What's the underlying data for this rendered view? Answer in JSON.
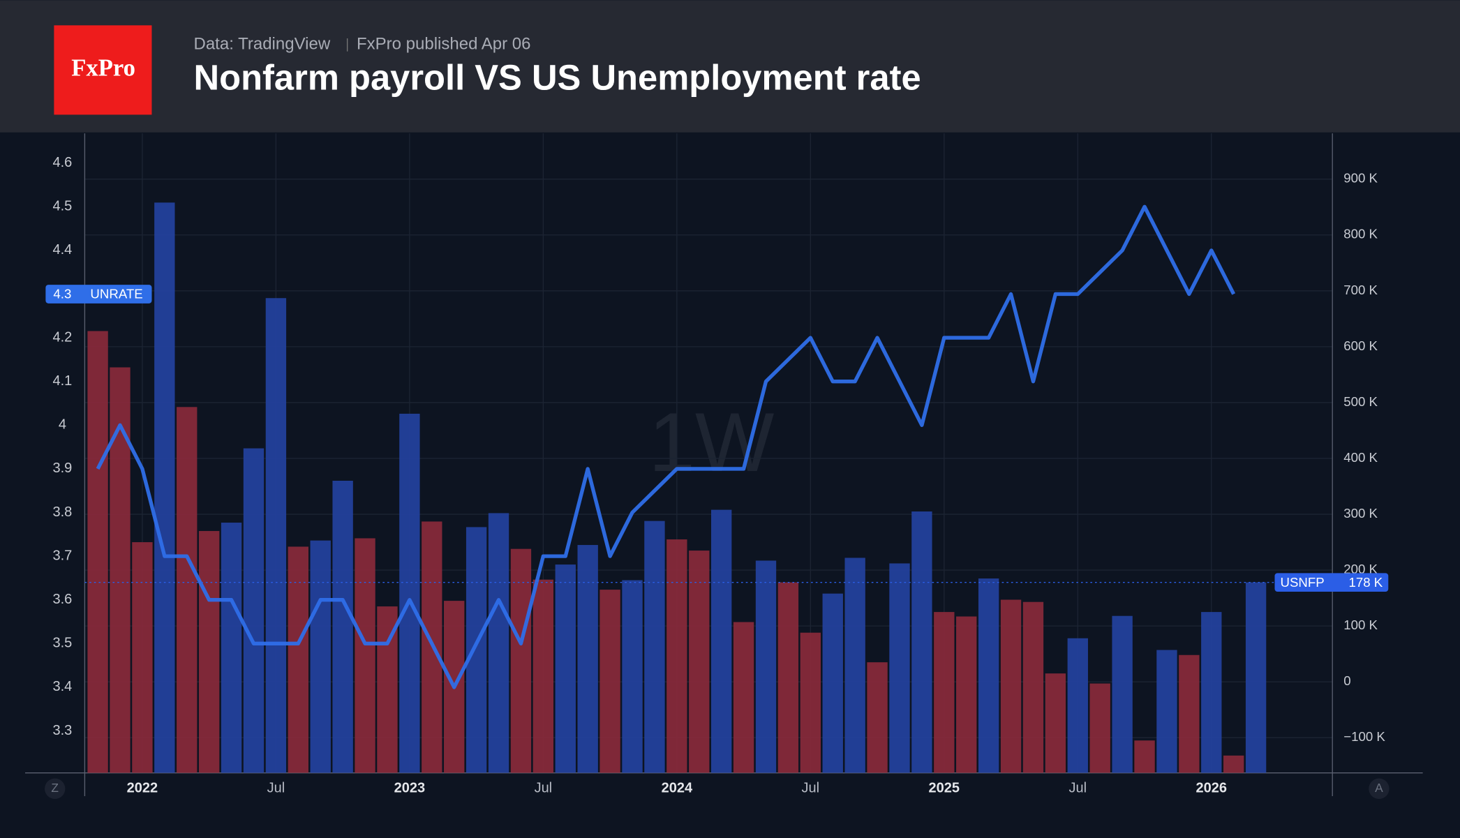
{
  "header": {
    "logo": "FxPro",
    "source": "Data: TradingView",
    "published": "FxPro published Apr 06"
  },
  "buttons": [
    "Z",
    "A"
  ],
  "chart_data": {
    "type": "bar",
    "title": "Nonfarm payroll VS US Unemployment rate",
    "watermark": "1W",
    "categories": [
      null,
      null,
      "2022",
      null,
      null,
      null,
      null,
      null,
      "Jul",
      null,
      null,
      null,
      null,
      null,
      "2023",
      null,
      null,
      null,
      null,
      null,
      "Jul",
      null,
      null,
      null,
      null,
      null,
      "2024",
      null,
      null,
      null,
      null,
      null,
      "Jul",
      null,
      null,
      null,
      null,
      null,
      "2025",
      null,
      null,
      null,
      null,
      null,
      "Jul",
      null,
      null,
      null,
      null,
      null,
      "2026",
      null,
      null
    ],
    "series": [
      {
        "name": "USNFP",
        "type": "bar",
        "axis": "y2",
        "badge": "178 K",
        "badge_value": 178,
        "color": "#2b5ee6",
        "colors": [
          "#8c2a3b",
          "#8c2a3b",
          "#8c2a3b",
          "#2443a2",
          "#8c2a3b",
          "#8c2a3b",
          "#2443a2",
          "#2443a2",
          "#2443a2",
          "#8c2a3b",
          "#2443a2",
          "#2443a2",
          "#8c2a3b",
          "#8c2a3b",
          "#2443a2",
          "#8c2a3b",
          "#8c2a3b",
          "#2443a2",
          "#2443a2",
          "#8c2a3b",
          "#8c2a3b",
          "#2443a2",
          "#2443a2",
          "#8c2a3b",
          "#2443a2",
          "#2443a2",
          "#8c2a3b",
          "#8c2a3b",
          "#2443a2",
          "#8c2a3b",
          "#2443a2",
          "#8c2a3b",
          "#8c2a3b",
          "#2443a2",
          "#2443a2",
          "#8c2a3b",
          "#2443a2",
          "#2443a2",
          "#8c2a3b",
          "#8c2a3b",
          "#2443a2",
          "#8c2a3b",
          "#8c2a3b",
          "#8c2a3b",
          "#2443a2",
          "#8c2a3b",
          "#2443a2",
          "#8c2a3b",
          "#2443a2",
          "#8c2a3b",
          "#2443a2",
          "#8c2a3b",
          "#2443a2"
        ],
        "values": [
          628,
          563,
          250,
          858,
          492,
          270,
          285,
          418,
          687,
          242,
          253,
          360,
          257,
          135,
          480,
          287,
          145,
          277,
          302,
          238,
          183,
          210,
          245,
          165,
          182,
          288,
          255,
          235,
          308,
          107,
          217,
          178,
          88,
          158,
          222,
          35,
          212,
          305,
          125,
          117,
          185,
          147,
          143,
          15,
          78,
          -3,
          118,
          -105,
          57,
          48,
          125,
          -132,
          178
        ]
      },
      {
        "name": "UNRATE",
        "type": "line",
        "axis": "y",
        "color": "#2f6ee8",
        "values": [
          3.9,
          4.0,
          3.9,
          3.7,
          3.7,
          3.6,
          3.6,
          3.5,
          3.5,
          3.5,
          3.6,
          3.6,
          3.5,
          3.5,
          3.6,
          3.5,
          3.4,
          3.5,
          3.6,
          3.5,
          3.7,
          3.7,
          3.9,
          3.7,
          3.8,
          3.85,
          3.9,
          3.9,
          3.9,
          3.9,
          4.1,
          4.15,
          4.2,
          4.1,
          4.1,
          4.2,
          4.1,
          4.0,
          4.2,
          4.2,
          4.2,
          4.3,
          4.1,
          4.3,
          4.3,
          4.35,
          4.4,
          4.5,
          4.4,
          4.3,
          4.4,
          4.3,
          null
        ]
      }
    ],
    "ylim": [
      3.204,
      4.668
    ],
    "yticks": [
      3.3,
      3.4,
      3.5,
      3.6,
      3.7,
      3.8,
      3.9,
      4,
      4.1,
      4.2,
      4.3,
      4.4,
      4.5,
      4.6
    ],
    "y2lim": [
      -163,
      982
    ],
    "y2ticks": [
      {
        "value": -100,
        "label": "−100 K"
      },
      0,
      {
        "value": 100,
        "label": "100 K"
      },
      {
        "value": 200,
        "label": "200 K"
      },
      {
        "value": 300,
        "label": "300 K"
      },
      {
        "value": 400,
        "label": "400 K"
      },
      {
        "value": 500,
        "label": "500 K"
      },
      {
        "value": 600,
        "label": "600 K"
      },
      {
        "value": 700,
        "label": "700 K"
      },
      {
        "value": 800,
        "label": "800 K"
      },
      {
        "value": 900,
        "label": "900 K"
      }
    ],
    "grid": true
  }
}
